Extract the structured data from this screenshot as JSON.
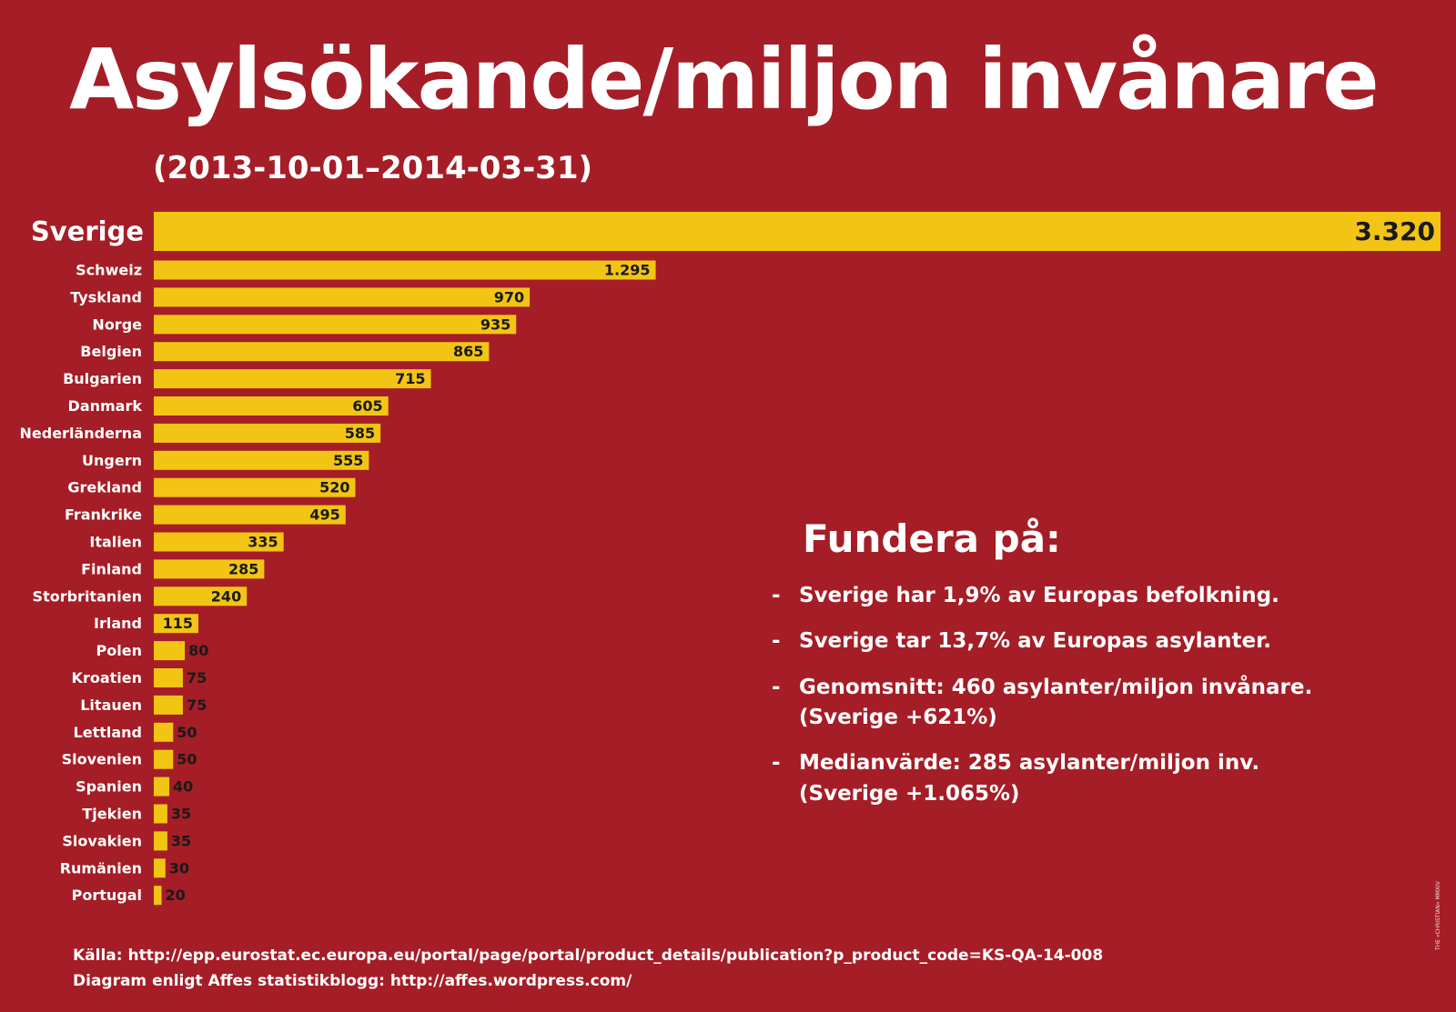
{
  "title": "Asylsökande/miljon invånare",
  "subtitle": "(2013-10-01–2014-03-31)",
  "colors": {
    "background": "#a51d26",
    "bar": "#f2c515",
    "label": "#ffffff",
    "value": "#1a1a1a"
  },
  "chart_data": {
    "type": "bar",
    "orientation": "horizontal",
    "title": "Asylsökande/miljon invånare",
    "subtitle": "(2013-10-01–2014-03-31)",
    "categories": [
      "Sverige",
      "Schweiz",
      "Tyskland",
      "Norge",
      "Belgien",
      "Bulgarien",
      "Danmark",
      "Nederländerna",
      "Ungern",
      "Grekland",
      "Frankrike",
      "Italien",
      "Finland",
      "Storbritanien",
      "Irland",
      "Polen",
      "Kroatien",
      "Litauen",
      "Lettland",
      "Slovenien",
      "Spanien",
      "Tjekien",
      "Slovakien",
      "Rumänien",
      "Portugal"
    ],
    "values": [
      3320,
      1295,
      970,
      935,
      865,
      715,
      605,
      585,
      555,
      520,
      495,
      335,
      285,
      240,
      115,
      80,
      75,
      75,
      50,
      50,
      40,
      35,
      35,
      30,
      20
    ],
    "value_labels": [
      "3.320",
      "1.295",
      "970",
      "935",
      "865",
      "715",
      "605",
      "585",
      "555",
      "520",
      "495",
      "335",
      "285",
      "240",
      "115",
      "80",
      "75",
      "75",
      "50",
      "50",
      "40",
      "35",
      "35",
      "30",
      "20"
    ],
    "xlim": [
      0,
      3320
    ],
    "grid": false,
    "legend": "none"
  },
  "notes": {
    "title": "Fundera på:",
    "dash": "-",
    "items": [
      "Sverige har 1,9% av Europas befolkning.",
      "Sverige tar 13,7% av Europas asylanter.",
      "Genomsnitt: 460 asylanter/miljon invånare.\n(Sverige +621%)",
      "Medianvärde: 285 asylanter/miljon inv.\n(Sverige +1.065%)"
    ]
  },
  "footer": {
    "source": "Källa: http://epp.eurostat.ec.europa.eu/portal/page/portal/product_details/publication?p_product_code=KS-QA-14-008",
    "credit_line": "Diagram enligt Affes statistikblogg: http://affes.wordpress.com/"
  },
  "side_credit": "THE «CHRISTIAN» MMXIV"
}
